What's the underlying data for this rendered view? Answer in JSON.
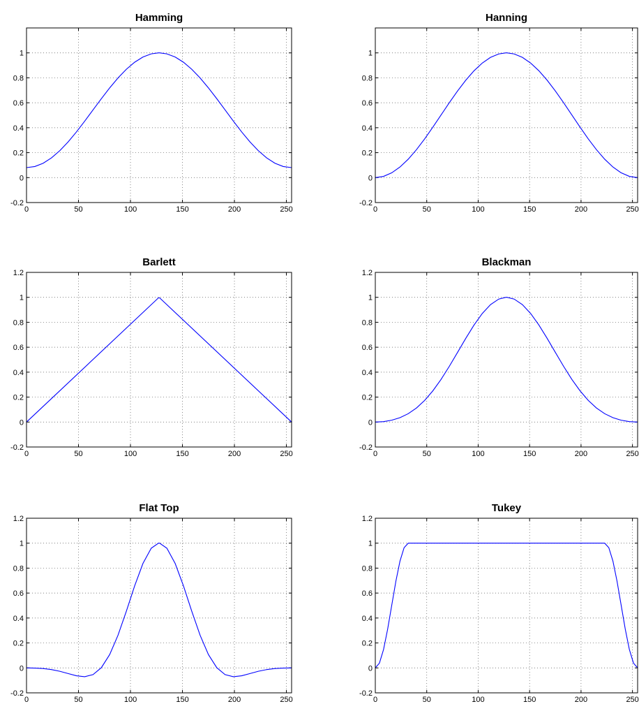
{
  "chart_data": [
    {
      "type": "line",
      "title": "Hamming",
      "color": "#0000ff",
      "grid": true,
      "xlim": [
        0,
        255
      ],
      "ylim": [
        -0.2,
        1.2
      ],
      "xticks": [
        0,
        50,
        100,
        150,
        200,
        250
      ],
      "yticks": [
        -0.2,
        0,
        0.2,
        0.4,
        0.6,
        0.8,
        1
      ],
      "x": [
        0,
        8,
        16,
        24,
        32,
        40,
        48,
        56,
        64,
        72,
        80,
        88,
        96,
        104,
        112,
        120,
        127,
        128,
        135,
        143,
        151,
        159,
        167,
        175,
        183,
        191,
        199,
        207,
        215,
        223,
        231,
        239,
        247,
        255
      ],
      "values": [
        0.08,
        0.0889,
        0.1153,
        0.1581,
        0.2157,
        0.2859,
        0.3659,
        0.4527,
        0.5428,
        0.6329,
        0.7193,
        0.7988,
        0.8683,
        0.925,
        0.9669,
        0.9922,
        1,
        1,
        0.9922,
        0.9669,
        0.925,
        0.8683,
        0.7988,
        0.7193,
        0.6329,
        0.5428,
        0.4527,
        0.3659,
        0.2859,
        0.2157,
        0.1581,
        0.1153,
        0.0889,
        0.08
      ]
    },
    {
      "type": "line",
      "title": "Hanning",
      "color": "#0000ff",
      "grid": true,
      "xlim": [
        0,
        255
      ],
      "ylim": [
        -0.2,
        1.2
      ],
      "xticks": [
        0,
        50,
        100,
        150,
        200,
        250
      ],
      "yticks": [
        -0.2,
        0,
        0.2,
        0.4,
        0.6,
        0.8,
        1
      ],
      "x": [
        0,
        8,
        16,
        24,
        32,
        40,
        48,
        56,
        64,
        72,
        80,
        88,
        96,
        104,
        112,
        120,
        127,
        128,
        135,
        143,
        151,
        159,
        167,
        175,
        183,
        191,
        199,
        207,
        215,
        223,
        231,
        239,
        247,
        255
      ],
      "values": [
        0,
        0.0097,
        0.0384,
        0.0849,
        0.1475,
        0.2238,
        0.3108,
        0.4051,
        0.5031,
        0.6009,
        0.6949,
        0.7813,
        0.8568,
        0.9185,
        0.964,
        0.9915,
        1,
        1,
        0.9915,
        0.964,
        0.9185,
        0.8568,
        0.7813,
        0.6949,
        0.6009,
        0.5031,
        0.4051,
        0.3108,
        0.2238,
        0.1475,
        0.0849,
        0.0384,
        0.0097,
        0
      ]
    },
    {
      "type": "line",
      "title": "Barlett",
      "color": "#0000ff",
      "grid": true,
      "xlim": [
        0,
        255
      ],
      "ylim": [
        -0.2,
        1.2
      ],
      "xticks": [
        0,
        50,
        100,
        150,
        200,
        250
      ],
      "yticks": [
        -0.2,
        0,
        0.2,
        0.4,
        0.6,
        0.8,
        1,
        1.2
      ],
      "x": [
        0,
        127,
        128,
        255
      ],
      "values": [
        0,
        0.9961,
        0.9961,
        0
      ]
    },
    {
      "type": "line",
      "title": "Blackman",
      "color": "#0000ff",
      "grid": true,
      "xlim": [
        0,
        255
      ],
      "ylim": [
        -0.2,
        1.2
      ],
      "xticks": [
        0,
        50,
        100,
        150,
        200,
        250
      ],
      "yticks": [
        -0.2,
        0,
        0.2,
        0.4,
        0.6,
        0.8,
        1,
        1.2
      ],
      "x": [
        0,
        8,
        16,
        24,
        32,
        40,
        48,
        56,
        64,
        72,
        80,
        88,
        96,
        104,
        112,
        120,
        127,
        128,
        135,
        143,
        151,
        159,
        167,
        175,
        183,
        191,
        199,
        207,
        215,
        223,
        231,
        239,
        247,
        255
      ],
      "values": [
        0,
        0.0035,
        0.0148,
        0.0352,
        0.067,
        0.1126,
        0.1737,
        0.2508,
        0.3431,
        0.4475,
        0.5592,
        0.672,
        0.7783,
        0.8706,
        0.9418,
        0.9861,
        1,
        1,
        0.9861,
        0.9418,
        0.8706,
        0.7783,
        0.672,
        0.5592,
        0.4475,
        0.3431,
        0.2508,
        0.1737,
        0.1126,
        0.067,
        0.0352,
        0.0148,
        0.0035,
        0
      ]
    },
    {
      "type": "line",
      "title": "Flat Top",
      "color": "#0000ff",
      "grid": true,
      "xlim": [
        0,
        255
      ],
      "ylim": [
        -0.2,
        1.2
      ],
      "xticks": [
        0,
        50,
        100,
        150,
        200,
        250
      ],
      "yticks": [
        -0.2,
        0,
        0.2,
        0.4,
        0.6,
        0.8,
        1,
        1.2
      ],
      "x": [
        0,
        8,
        16,
        24,
        32,
        40,
        48,
        56,
        64,
        72,
        80,
        88,
        96,
        104,
        112,
        120,
        127,
        128,
        135,
        143,
        151,
        159,
        167,
        175,
        183,
        191,
        199,
        207,
        215,
        223,
        231,
        239,
        247,
        255
      ],
      "values": [
        0,
        -0.0015,
        -0.0053,
        -0.0135,
        -0.0271,
        -0.0453,
        -0.063,
        -0.0705,
        -0.0537,
        0.0019,
        0.1068,
        0.2617,
        0.4537,
        0.657,
        0.8372,
        0.9599,
        1,
        1,
        0.9599,
        0.8372,
        0.657,
        0.4537,
        0.2617,
        0.1068,
        0.0019,
        -0.0537,
        -0.0705,
        -0.063,
        -0.0453,
        -0.0271,
        -0.0135,
        -0.0053,
        -0.0015,
        0
      ]
    },
    {
      "type": "line",
      "title": "Tukey",
      "color": "#0000ff",
      "grid": true,
      "xlim": [
        0,
        255
      ],
      "ylim": [
        -0.2,
        1.2
      ],
      "xticks": [
        0,
        50,
        100,
        150,
        200,
        250
      ],
      "yticks": [
        -0.2,
        0,
        0.2,
        0.4,
        0.6,
        0.8,
        1,
        1.2
      ],
      "x": [
        0,
        4,
        8,
        12,
        16,
        20,
        24,
        28,
        32,
        223,
        227,
        231,
        235,
        239,
        243,
        247,
        251,
        255
      ],
      "values": [
        0,
        0.0384,
        0.1473,
        0.3107,
        0.5031,
        0.6949,
        0.8568,
        0.964,
        1,
        1,
        0.964,
        0.8568,
        0.6949,
        0.5031,
        0.3107,
        0.1473,
        0.0384,
        0
      ]
    }
  ]
}
